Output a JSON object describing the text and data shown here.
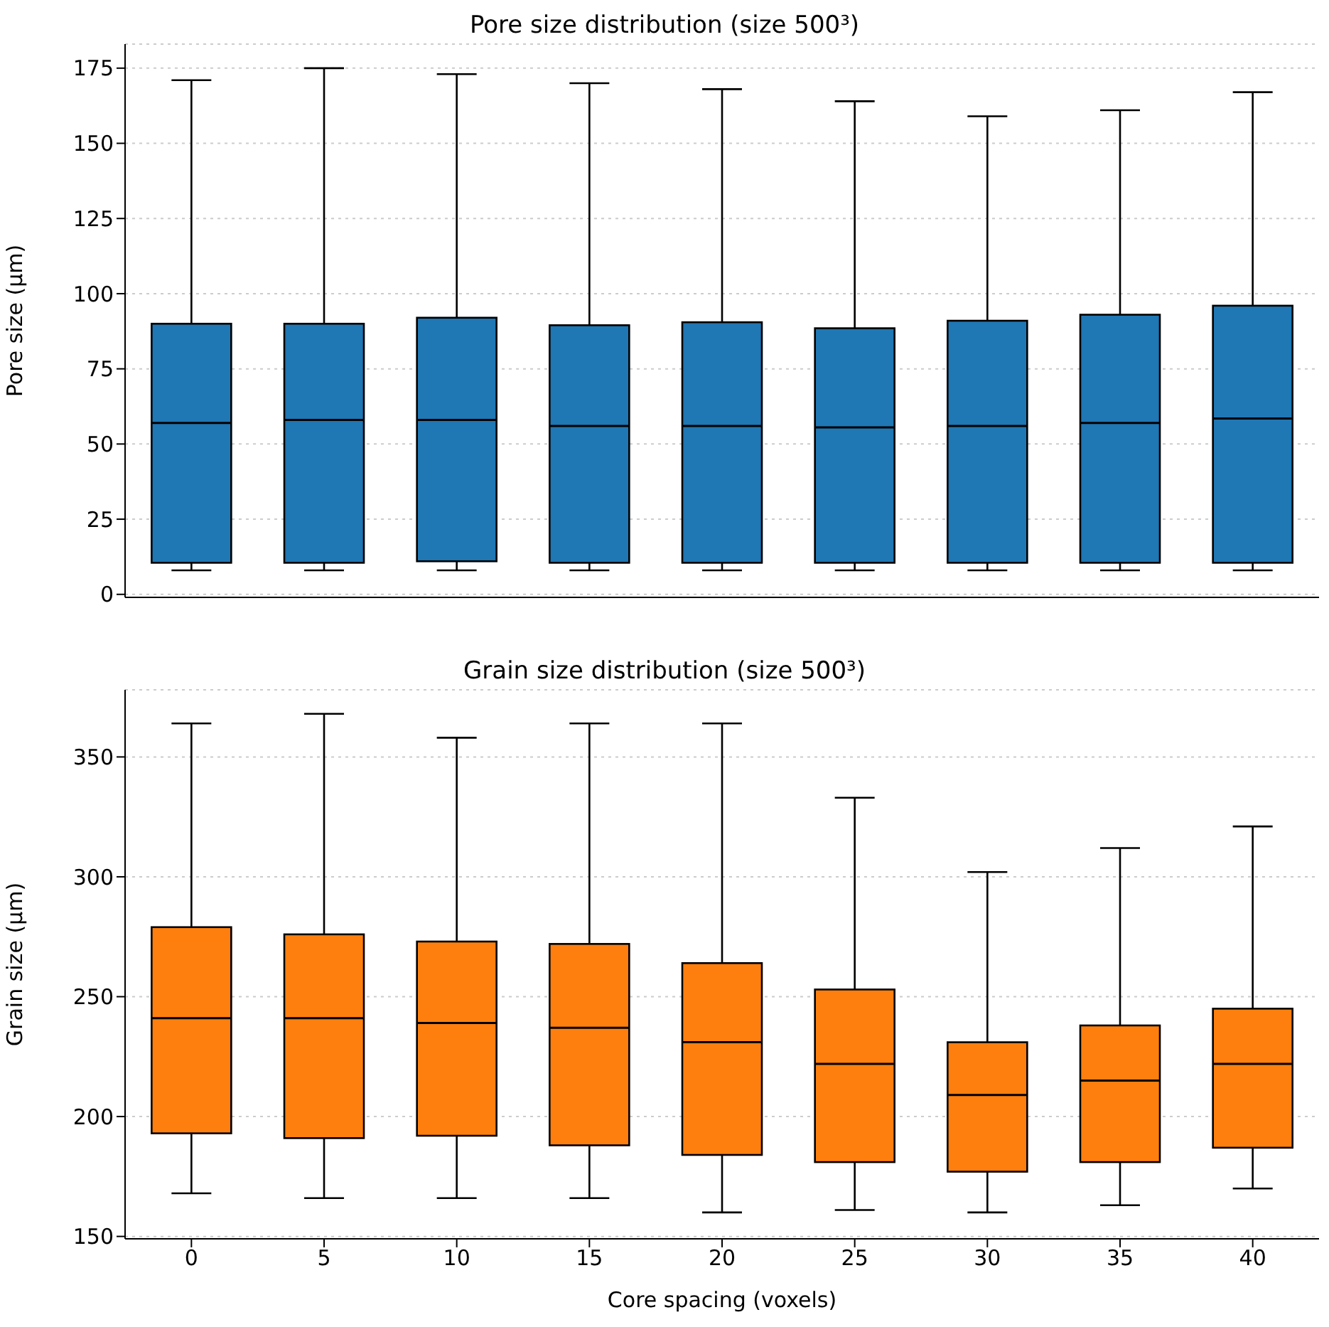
{
  "chart_data": [
    {
      "type": "box",
      "title": "Pore size distribution (size 500³)",
      "ylabel": "Pore size (µm)",
      "categories": [
        "0",
        "5",
        "10",
        "15",
        "20",
        "25",
        "30",
        "35",
        "40"
      ],
      "color": "#1f77b4",
      "boxes": [
        {
          "low": 8,
          "q1": 10.5,
          "median": 57,
          "q3": 90,
          "high": 171
        },
        {
          "low": 8,
          "q1": 10.5,
          "median": 58,
          "q3": 90,
          "high": 175
        },
        {
          "low": 8,
          "q1": 11,
          "median": 58,
          "q3": 92,
          "high": 173
        },
        {
          "low": 8,
          "q1": 10.5,
          "median": 56,
          "q3": 89.5,
          "high": 170
        },
        {
          "low": 8,
          "q1": 10.5,
          "median": 56,
          "q3": 90.5,
          "high": 168
        },
        {
          "low": 8,
          "q1": 10.5,
          "median": 55.5,
          "q3": 88.5,
          "high": 164
        },
        {
          "low": 8,
          "q1": 10.5,
          "median": 56,
          "q3": 91,
          "high": 159
        },
        {
          "low": 8,
          "q1": 10.5,
          "median": 57,
          "q3": 93,
          "high": 161
        },
        {
          "low": 8,
          "q1": 10.5,
          "median": 58.5,
          "q3": 96,
          "high": 167
        }
      ],
      "ylim": [
        -1,
        183
      ],
      "yticks": [
        0,
        25,
        50,
        75,
        100,
        125,
        150,
        175
      ],
      "grid": "y",
      "tick_labels": "y"
    },
    {
      "type": "box",
      "title": "Grain size distribution (size 500³)",
      "xlabel": "Core spacing (voxels)",
      "ylabel": "Grain size (µm)",
      "categories": [
        "0",
        "5",
        "10",
        "15",
        "20",
        "25",
        "30",
        "35",
        "40"
      ],
      "color": "#ff7f0e",
      "boxes": [
        {
          "low": 168,
          "q1": 193,
          "median": 241,
          "q3": 279,
          "high": 364
        },
        {
          "low": 166,
          "q1": 191,
          "median": 241,
          "q3": 276,
          "high": 368
        },
        {
          "low": 166,
          "q1": 192,
          "median": 239,
          "q3": 273,
          "high": 358
        },
        {
          "low": 166,
          "q1": 188,
          "median": 237,
          "q3": 272,
          "high": 364
        },
        {
          "low": 160,
          "q1": 184,
          "median": 231,
          "q3": 264,
          "high": 364
        },
        {
          "low": 161,
          "q1": 181,
          "median": 222,
          "q3": 253,
          "high": 333
        },
        {
          "low": 160,
          "q1": 177,
          "median": 209,
          "q3": 231,
          "high": 302
        },
        {
          "low": 163,
          "q1": 181,
          "median": 215,
          "q3": 238,
          "high": 312
        },
        {
          "low": 170,
          "q1": 187,
          "median": 222,
          "q3": 245,
          "high": 321
        }
      ],
      "ylim": [
        149,
        378
      ],
      "yticks": [
        150,
        200,
        250,
        300,
        350
      ],
      "grid": "y"
    }
  ]
}
